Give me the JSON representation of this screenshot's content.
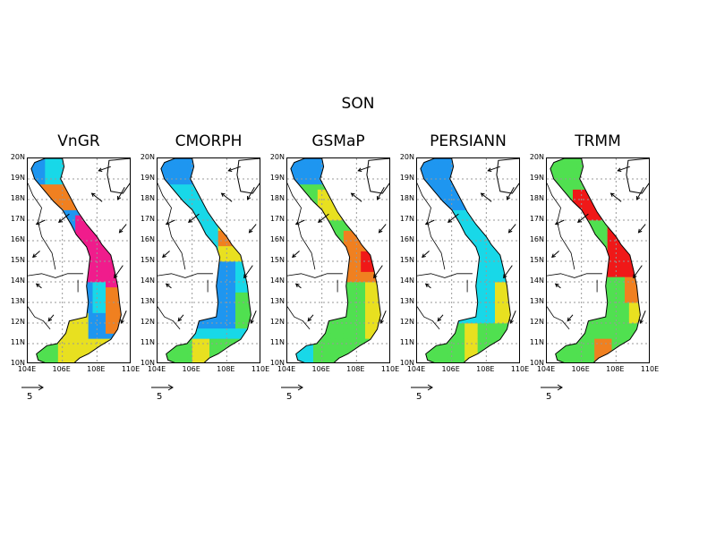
{
  "title": "SON",
  "panels": [
    {
      "name": "VnGR",
      "scheme": "vngr"
    },
    {
      "name": "CMORPH",
      "scheme": "cmorph"
    },
    {
      "name": "GSMaP",
      "scheme": "gsmap"
    },
    {
      "name": "PERSIANN",
      "scheme": "persiann"
    },
    {
      "name": "TRMM",
      "scheme": "trmm"
    }
  ],
  "lat_labels": [
    "20N",
    "19N",
    "18N",
    "17N",
    "16N",
    "15N",
    "14N",
    "13N",
    "12N",
    "11N",
    "10N"
  ],
  "lon_labels": [
    "104E",
    "106E",
    "108E",
    "110E"
  ],
  "lon_range": [
    104,
    110
  ],
  "lat_range": [
    10,
    20
  ],
  "wind_reference": {
    "magnitude": "5"
  },
  "colors": {
    "low": "#1e96f0",
    "cyan": "#18d8e8",
    "green": "#50e050",
    "yellow": "#e8e020",
    "orange": "#f08020",
    "red": "#f01818",
    "magenta": "#f01c8c"
  }
}
